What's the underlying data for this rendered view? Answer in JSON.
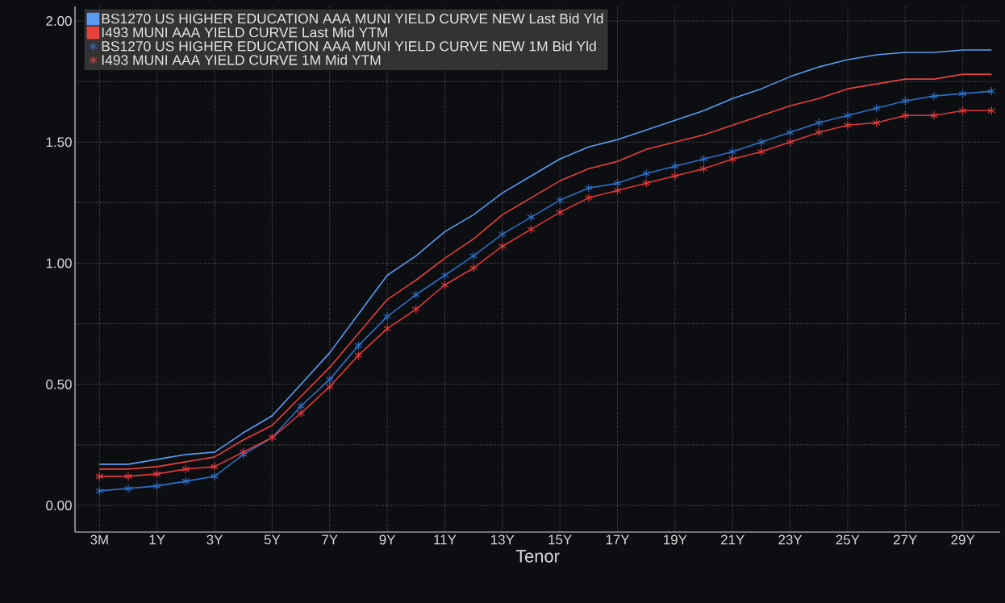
{
  "chart_data": {
    "type": "line",
    "xlabel": "Tenor",
    "categories": [
      "3M",
      null,
      "1Y",
      null,
      "3Y",
      null,
      "5Y",
      null,
      "7Y",
      null,
      "9Y",
      null,
      "11Y",
      null,
      "13Y",
      null,
      "15Y",
      null,
      "17Y",
      null,
      "19Y",
      null,
      "21Y",
      null,
      "23Y",
      null,
      "25Y",
      null,
      "27Y",
      null,
      "29Y",
      null
    ],
    "series": [
      {
        "name": "BS1270 US HIGHER EDUCATION AAA MUNI YIELD CURVE NEW Last Bid Yld",
        "color": "#5b9cf2",
        "marker": "none",
        "values": [
          0.17,
          0.17,
          0.19,
          0.21,
          0.22,
          0.3,
          0.37,
          0.5,
          0.63,
          0.79,
          0.95,
          1.03,
          1.13,
          1.2,
          1.29,
          1.36,
          1.43,
          1.48,
          1.51,
          1.55,
          1.59,
          1.63,
          1.68,
          1.72,
          1.77,
          1.81,
          1.84,
          1.86,
          1.87,
          1.87,
          1.88,
          1.88
        ]
      },
      {
        "name": "I493 MUNI AAA YIELD CURVE Last Mid YTM",
        "color": "#e8413c",
        "marker": "none",
        "values": [
          0.15,
          0.15,
          0.16,
          0.18,
          0.2,
          0.27,
          0.33,
          0.45,
          0.57,
          0.71,
          0.85,
          0.93,
          1.02,
          1.1,
          1.2,
          1.27,
          1.34,
          1.39,
          1.42,
          1.47,
          1.5,
          1.53,
          1.57,
          1.61,
          1.65,
          1.68,
          1.72,
          1.74,
          1.76,
          1.76,
          1.78,
          1.78
        ]
      },
      {
        "name": "BS1270 US HIGHER EDUCATION AAA MUNI YIELD CURVE NEW 1M Bid Yld",
        "color": "#2e6fc4",
        "marker": "cross",
        "values": [
          0.06,
          0.07,
          0.08,
          0.1,
          0.12,
          0.21,
          0.28,
          0.41,
          0.52,
          0.66,
          0.78,
          0.87,
          0.95,
          1.03,
          1.12,
          1.19,
          1.26,
          1.31,
          1.33,
          1.37,
          1.4,
          1.43,
          1.46,
          1.5,
          1.54,
          1.58,
          1.61,
          1.64,
          1.67,
          1.69,
          1.7,
          1.71
        ]
      },
      {
        "name": "I493 MUNI AAA YIELD CURVE 1M Mid YTM",
        "color": "#e0393a",
        "marker": "cross",
        "values": [
          0.12,
          0.12,
          0.13,
          0.15,
          0.16,
          0.22,
          0.28,
          0.38,
          0.49,
          0.62,
          0.73,
          0.81,
          0.91,
          0.98,
          1.07,
          1.14,
          1.21,
          1.27,
          1.3,
          1.33,
          1.36,
          1.39,
          1.43,
          1.46,
          1.5,
          1.54,
          1.57,
          1.58,
          1.61,
          1.61,
          1.63,
          1.63
        ]
      }
    ],
    "ylim": [
      -0.11,
      2.06
    ],
    "yticks": [
      {
        "value": 0,
        "label": "0.00"
      },
      {
        "value": 0.25,
        "label": null
      },
      {
        "value": 0.5,
        "label": "0.50"
      },
      {
        "value": 0.75,
        "label": null
      },
      {
        "value": 1,
        "label": "1.00"
      },
      {
        "value": 1.25,
        "label": null
      },
      {
        "value": 1.5,
        "label": "1.50"
      },
      {
        "value": 1.75,
        "label": null
      },
      {
        "value": 2,
        "label": "2.00"
      }
    ],
    "grid": true,
    "legend": "top left",
    "line_style": "solid"
  }
}
